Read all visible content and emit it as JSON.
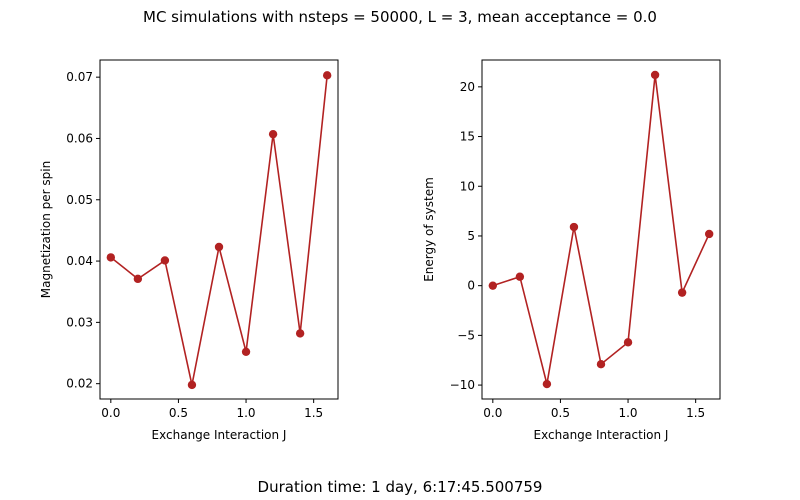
{
  "figure": {
    "title": "MC simulations with nsteps = 50000, L = 3, mean acceptance = 0.0",
    "footer": "Duration time: 1 day, 6:17:45.500759",
    "line_color": "#b22222"
  },
  "chart_data": [
    {
      "type": "line",
      "xlabel": "Exchange Interaction J",
      "ylabel": "Magnetization per spin",
      "xlim": [
        -0.08,
        1.68
      ],
      "ylim": [
        0.0175,
        0.0728
      ],
      "xticks": [
        0.0,
        0.5,
        1.0,
        1.5
      ],
      "xtick_labels": [
        "0.0",
        "0.5",
        "1.0",
        "1.5"
      ],
      "yticks": [
        0.02,
        0.03,
        0.04,
        0.05,
        0.06,
        0.07
      ],
      "ytick_labels": [
        "0.02",
        "0.03",
        "0.04",
        "0.05",
        "0.06",
        "0.07"
      ],
      "grid": false,
      "x": [
        0.0,
        0.2,
        0.4,
        0.6,
        0.8,
        1.0,
        1.2,
        1.4,
        1.6
      ],
      "y": [
        0.0406,
        0.0371,
        0.0401,
        0.0198,
        0.0423,
        0.0252,
        0.0607,
        0.0282,
        0.0703
      ]
    },
    {
      "type": "line",
      "xlabel": "Exchange Interaction J",
      "ylabel": "Energy of system",
      "xlim": [
        -0.08,
        1.68
      ],
      "ylim": [
        -11.4,
        22.7
      ],
      "xticks": [
        0.0,
        0.5,
        1.0,
        1.5
      ],
      "xtick_labels": [
        "0.0",
        "0.5",
        "1.0",
        "1.5"
      ],
      "yticks": [
        -10,
        -5,
        0,
        5,
        10,
        15,
        20
      ],
      "ytick_labels": [
        "−10",
        "−5",
        "0",
        "5",
        "10",
        "15",
        "20"
      ],
      "grid": false,
      "x": [
        0.0,
        0.2,
        0.4,
        0.6,
        0.8,
        1.0,
        1.2,
        1.4,
        1.6
      ],
      "y": [
        0.0,
        0.9,
        -9.9,
        5.9,
        -7.9,
        -5.7,
        21.2,
        -0.7,
        5.2
      ]
    }
  ]
}
